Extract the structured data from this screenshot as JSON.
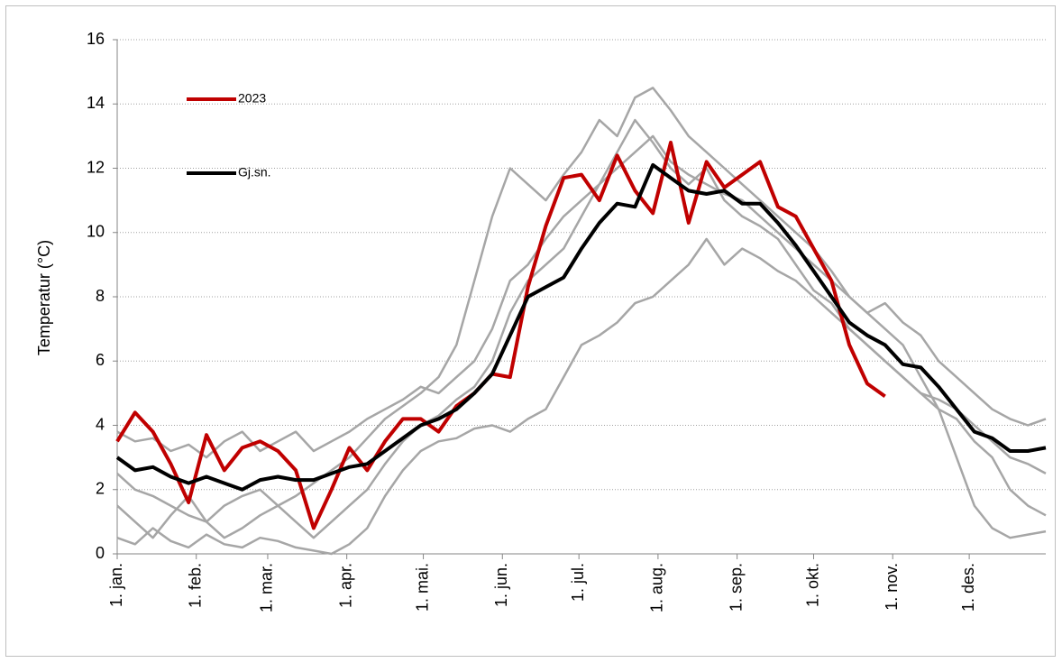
{
  "chart_data": {
    "type": "line",
    "ylabel": "Temperatur (°C)",
    "x": [
      1,
      8,
      15,
      22,
      29,
      36,
      43,
      50,
      57,
      64,
      71,
      78,
      85,
      92,
      99,
      106,
      113,
      120,
      127,
      134,
      141,
      148,
      155,
      162,
      169,
      176,
      183,
      190,
      197,
      204,
      211,
      218,
      225,
      232,
      239,
      246,
      253,
      260,
      267,
      274,
      281,
      288,
      295,
      302,
      309,
      316,
      323,
      330,
      337,
      344,
      351,
      358,
      365
    ],
    "xlim": [
      1,
      365
    ],
    "xticks": [
      {
        "value": 1,
        "label": "1. jan."
      },
      {
        "value": 32,
        "label": "1. feb."
      },
      {
        "value": 60,
        "label": "1. mar."
      },
      {
        "value": 91,
        "label": "1. apr."
      },
      {
        "value": 121,
        "label": "1. mai."
      },
      {
        "value": 152,
        "label": "1. jun."
      },
      {
        "value": 182,
        "label": "1. jul."
      },
      {
        "value": 213,
        "label": "1. aug."
      },
      {
        "value": 244,
        "label": "1. sep."
      },
      {
        "value": 274,
        "label": "1. okt."
      },
      {
        "value": 305,
        "label": "1. nov."
      },
      {
        "value": 335,
        "label": "1. des."
      }
    ],
    "ylim": [
      0,
      16
    ],
    "yticks": [
      0,
      2,
      4,
      6,
      8,
      10,
      12,
      14,
      16
    ],
    "grid": true,
    "series": [
      {
        "color": "#a6a6a6",
        "values": [
          0.5,
          0.3,
          0.8,
          0.4,
          0.2,
          0.6,
          0.3,
          0.2,
          0.5,
          0.4,
          0.2,
          0.1,
          0.0,
          0.3,
          0.8,
          1.8,
          2.6,
          3.2,
          3.5,
          3.6,
          3.9,
          4.0,
          3.8,
          4.2,
          4.5,
          5.5,
          6.5,
          6.8,
          7.2,
          7.8,
          8.0,
          8.5,
          9.0,
          9.8,
          9.0,
          9.5,
          9.2,
          8.8,
          8.5,
          8.0,
          7.5,
          7.0,
          6.5,
          6.0,
          5.5,
          5.0,
          4.5,
          4.2,
          3.5,
          3.0,
          2.0,
          1.5,
          1.2
        ]
      },
      {
        "color": "#a6a6a6",
        "values": [
          2.5,
          2.0,
          1.8,
          1.5,
          1.2,
          1.0,
          1.5,
          1.8,
          2.0,
          1.5,
          1.8,
          2.2,
          2.6,
          3.0,
          3.6,
          4.2,
          4.6,
          5.0,
          5.5,
          6.5,
          8.5,
          10.5,
          12.0,
          11.5,
          11.0,
          11.8,
          12.5,
          13.5,
          13.0,
          14.2,
          14.5,
          13.8,
          13.0,
          12.5,
          12.0,
          11.5,
          11.0,
          10.5,
          10.0,
          9.5,
          8.8,
          8.0,
          7.5,
          7.0,
          6.5,
          5.5,
          4.5,
          3.0,
          1.5,
          0.8,
          0.5,
          0.6,
          0.7
        ]
      },
      {
        "color": "#a6a6a6",
        "values": [
          3.8,
          3.5,
          3.6,
          3.2,
          3.4,
          3.0,
          3.5,
          3.8,
          3.2,
          3.5,
          3.8,
          3.2,
          3.5,
          3.8,
          4.2,
          4.5,
          4.8,
          5.2,
          5.0,
          5.5,
          6.0,
          7.0,
          8.5,
          9.0,
          9.8,
          10.5,
          11.0,
          11.5,
          12.0,
          12.5,
          13.0,
          12.2,
          11.8,
          11.5,
          11.2,
          11.0,
          10.5,
          10.0,
          9.5,
          9.0,
          8.5,
          8.0,
          7.5,
          7.8,
          7.2,
          6.8,
          6.0,
          5.5,
          5.0,
          4.5,
          4.2,
          4.0,
          4.2
        ]
      },
      {
        "color": "#a6a6a6",
        "values": [
          1.5,
          1.0,
          0.5,
          1.2,
          1.8,
          1.0,
          0.5,
          0.8,
          1.2,
          1.5,
          1.0,
          0.5,
          1.0,
          1.5,
          2.0,
          2.8,
          3.5,
          4.0,
          4.3,
          4.8,
          5.2,
          6.0,
          7.5,
          8.5,
          9.0,
          9.5,
          10.5,
          11.5,
          12.5,
          13.5,
          12.8,
          12.0,
          11.5,
          12.0,
          11.0,
          10.5,
          10.2,
          9.8,
          9.0,
          8.2,
          7.8,
          7.0,
          6.5,
          6.0,
          5.5,
          5.0,
          4.8,
          4.5,
          4.0,
          3.5,
          3.0,
          2.8,
          2.5
        ]
      },
      {
        "name": "2023",
        "color": "#c00000",
        "values": [
          3.5,
          4.4,
          3.8,
          2.8,
          1.6,
          3.7,
          2.6,
          3.3,
          3.5,
          3.2,
          2.6,
          0.8,
          2.0,
          3.3,
          2.6,
          3.5,
          4.2,
          4.2,
          3.8,
          4.6,
          5.0,
          5.6,
          5.5,
          8.3,
          10.2,
          11.7,
          11.8,
          11.0,
          12.4,
          11.3,
          10.6,
          12.8,
          10.3,
          12.2,
          11.4,
          11.8,
          12.2,
          10.8,
          10.5,
          9.5,
          8.5,
          6.5,
          5.3,
          4.9,
          null,
          null,
          null,
          null,
          null,
          null,
          null,
          null,
          null
        ]
      },
      {
        "name": "Gj.sn.",
        "color": "#000000",
        "values": [
          3.0,
          2.6,
          2.7,
          2.4,
          2.2,
          2.4,
          2.2,
          2.0,
          2.3,
          2.4,
          2.3,
          2.3,
          2.5,
          2.7,
          2.8,
          3.2,
          3.6,
          4.0,
          4.2,
          4.5,
          5.0,
          5.6,
          6.8,
          8.0,
          8.3,
          8.6,
          9.5,
          10.3,
          10.9,
          10.8,
          12.1,
          11.7,
          11.3,
          11.2,
          11.3,
          10.9,
          10.9,
          10.3,
          9.6,
          8.8,
          8.0,
          7.2,
          6.8,
          6.5,
          5.9,
          5.8,
          5.2,
          4.5,
          3.8,
          3.6,
          3.2,
          3.2,
          3.3
        ]
      }
    ]
  }
}
